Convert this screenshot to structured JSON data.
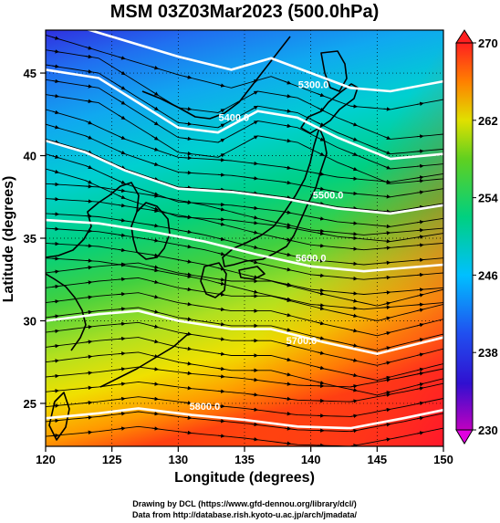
{
  "title": "MSM 03Z03Mar2023 (500.0hPa)",
  "x_axis": {
    "label": "Longitude (degrees)",
    "ticks": [
      120,
      125,
      130,
      135,
      140,
      145,
      150
    ],
    "range": [
      120,
      150
    ]
  },
  "y_axis": {
    "label": "Latitude  (degrees)",
    "ticks": [
      25,
      30,
      35,
      40,
      45
    ],
    "range": [
      22.4,
      47.6
    ]
  },
  "colorbar": {
    "ticks": [
      230,
      238,
      246,
      254,
      262,
      270
    ],
    "range": [
      230,
      270
    ],
    "colors": [
      "#c000c0",
      "#2020e0",
      "#00c0ff",
      "#00d080",
      "#40c020",
      "#e0e000",
      "#ff8000",
      "#ff2020"
    ]
  },
  "contours": [
    {
      "label": "5300.0",
      "points": [
        [
          120,
          48.4
        ],
        [
          125,
          47.2
        ],
        [
          130,
          46.0
        ],
        [
          134,
          45.2
        ],
        [
          137,
          45.9
        ],
        [
          140,
          45.0
        ],
        [
          143,
          44.1
        ],
        [
          146,
          43.9
        ],
        [
          150,
          44.5
        ]
      ],
      "label_at": [
        140.2,
        44.1
      ]
    },
    {
      "label": "5400.0",
      "points": [
        [
          120,
          45.2
        ],
        [
          124,
          44.7
        ],
        [
          127,
          43.2
        ],
        [
          130,
          41.7
        ],
        [
          133,
          41.4
        ],
        [
          136,
          42.7
        ],
        [
          139,
          42.3
        ],
        [
          142,
          41.1
        ],
        [
          146,
          39.8
        ],
        [
          150,
          40.1
        ]
      ],
      "label_at": [
        134.2,
        42.1
      ]
    },
    {
      "label": "5500.0",
      "points": [
        [
          120,
          40.9
        ],
        [
          123,
          40.2
        ],
        [
          126,
          39.1
        ],
        [
          130,
          38.0
        ],
        [
          134,
          37.8
        ],
        [
          138,
          37.4
        ],
        [
          142,
          36.8
        ],
        [
          146,
          36.5
        ],
        [
          150,
          37.0
        ]
      ],
      "label_at": [
        141.3,
        37.4
      ]
    },
    {
      "label": "5600.0",
      "points": [
        [
          120,
          36.1
        ],
        [
          124,
          35.9
        ],
        [
          128,
          35.4
        ],
        [
          132,
          34.8
        ],
        [
          136,
          34.0
        ],
        [
          140,
          33.3
        ],
        [
          144,
          33.0
        ],
        [
          150,
          33.4
        ]
      ],
      "label_at": [
        140.0,
        33.6
      ]
    },
    {
      "label": "5700.0",
      "points": [
        [
          120,
          30.0
        ],
        [
          124,
          30.4
        ],
        [
          127,
          30.6
        ],
        [
          130,
          30.0
        ],
        [
          134,
          29.5
        ],
        [
          137,
          29.5
        ],
        [
          141,
          28.7
        ],
        [
          145,
          28.0
        ],
        [
          150,
          29.0
        ]
      ],
      "label_at": [
        139.3,
        28.6
      ]
    },
    {
      "label": "5800.0",
      "points": [
        [
          120,
          24.1
        ],
        [
          124,
          24.4
        ],
        [
          127,
          24.7
        ],
        [
          131,
          24.3
        ],
        [
          135,
          24.0
        ],
        [
          139,
          23.6
        ],
        [
          143,
          23.5
        ],
        [
          147,
          24.1
        ],
        [
          150,
          24.6
        ]
      ],
      "label_at": [
        132.0,
        24.6
      ]
    }
  ],
  "wind_direction_note": "",
  "credits": [
    "Drawing by DCL (https://www.gfd-dennou.org/library/dcl/)",
    "Data from http://database.rish.kyoto-u.ac.jp/arch/jmadata/"
  ]
}
